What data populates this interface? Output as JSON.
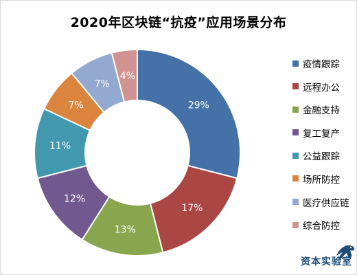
{
  "chart_data": {
    "type": "pie",
    "title": "2020年区块链“抗疫”应用场景分布",
    "donut": true,
    "legend_placement": "right",
    "categories": [
      "疫情跟踪",
      "远程办公",
      "金融支持",
      "复工复产",
      "公益跟踪",
      "场所防控",
      "医疗供应链",
      "综合防控"
    ],
    "values": [
      29,
      17,
      13,
      12,
      11,
      7,
      7,
      4
    ],
    "labels": [
      "29%",
      "17%",
      "13%",
      "12%",
      "11%",
      "7%",
      "7%",
      "4%"
    ],
    "colors": [
      "#4472a8",
      "#aa4644",
      "#89a54e",
      "#71588f",
      "#4198af",
      "#db843d",
      "#93a9cf",
      "#d19392"
    ]
  },
  "watermark": {
    "text": "资本实验室",
    "icon": "panther-logo-icon",
    "color": "#1f4e79"
  }
}
